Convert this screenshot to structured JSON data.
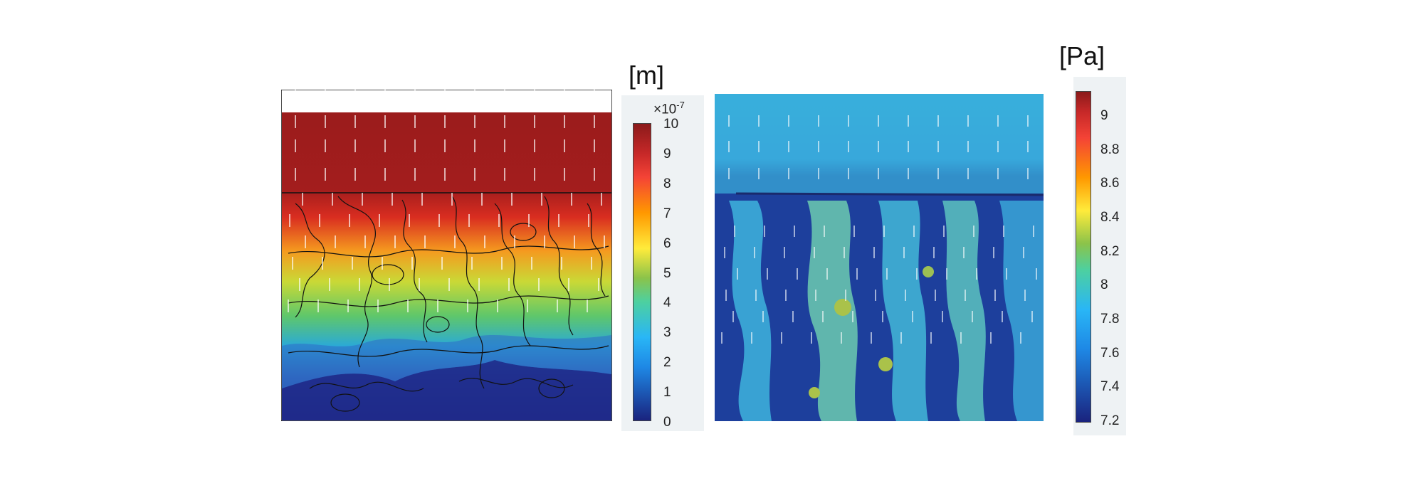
{
  "left_plot": {
    "unit": "[m]",
    "scale_factor": "×10",
    "scale_exponent": "-7",
    "ticks": [
      "10",
      "9",
      "8",
      "7",
      "6",
      "5",
      "4",
      "3",
      "2",
      "1",
      "0"
    ],
    "colormap": [
      "#1a237e",
      "#1565c0",
      "#29b6f6",
      "#4dd0a0",
      "#8bc34a",
      "#ffeb3b",
      "#ff9800",
      "#f44336",
      "#b71c1c",
      "#8b1a1a"
    ]
  },
  "right_plot": {
    "unit": "[Pa]",
    "ticks": [
      "9",
      "8.8",
      "8.6",
      "8.4",
      "8.2",
      "8",
      "7.8",
      "7.6",
      "7.4",
      "7.2"
    ],
    "colormap": [
      "#1a237e",
      "#1565c0",
      "#29b6f6",
      "#4dd0a0",
      "#8bc34a",
      "#ffeb3b",
      "#ff9800",
      "#f44336",
      "#b71c1c",
      "#8b1a1a"
    ]
  }
}
